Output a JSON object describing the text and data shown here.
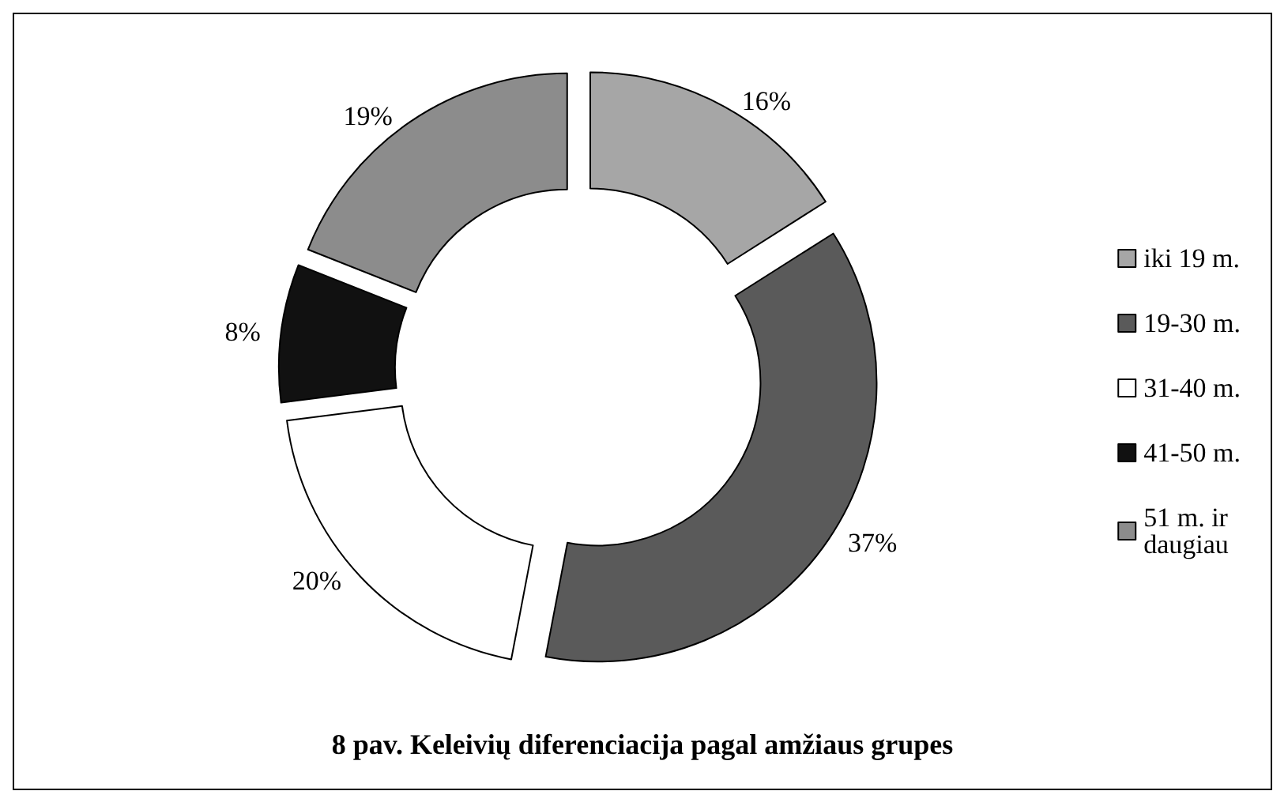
{
  "chart_data": {
    "type": "donut",
    "title": "8 pav. Keleivių diferenciacija pagal amžiaus grupes",
    "categories": [
      "iki 19 m.",
      "19-30 m.",
      "31-40 m.",
      "41-50 m.",
      "51 m. ir daugiau"
    ],
    "values": [
      16,
      37,
      20,
      8,
      19
    ],
    "value_labels": [
      "16%",
      "37%",
      "20%",
      "8%",
      "19%"
    ],
    "colors": [
      "#a6a6a6",
      "#5a5a5a",
      "#ffffff",
      "#111111",
      "#8c8c8c"
    ],
    "legend": "right"
  }
}
